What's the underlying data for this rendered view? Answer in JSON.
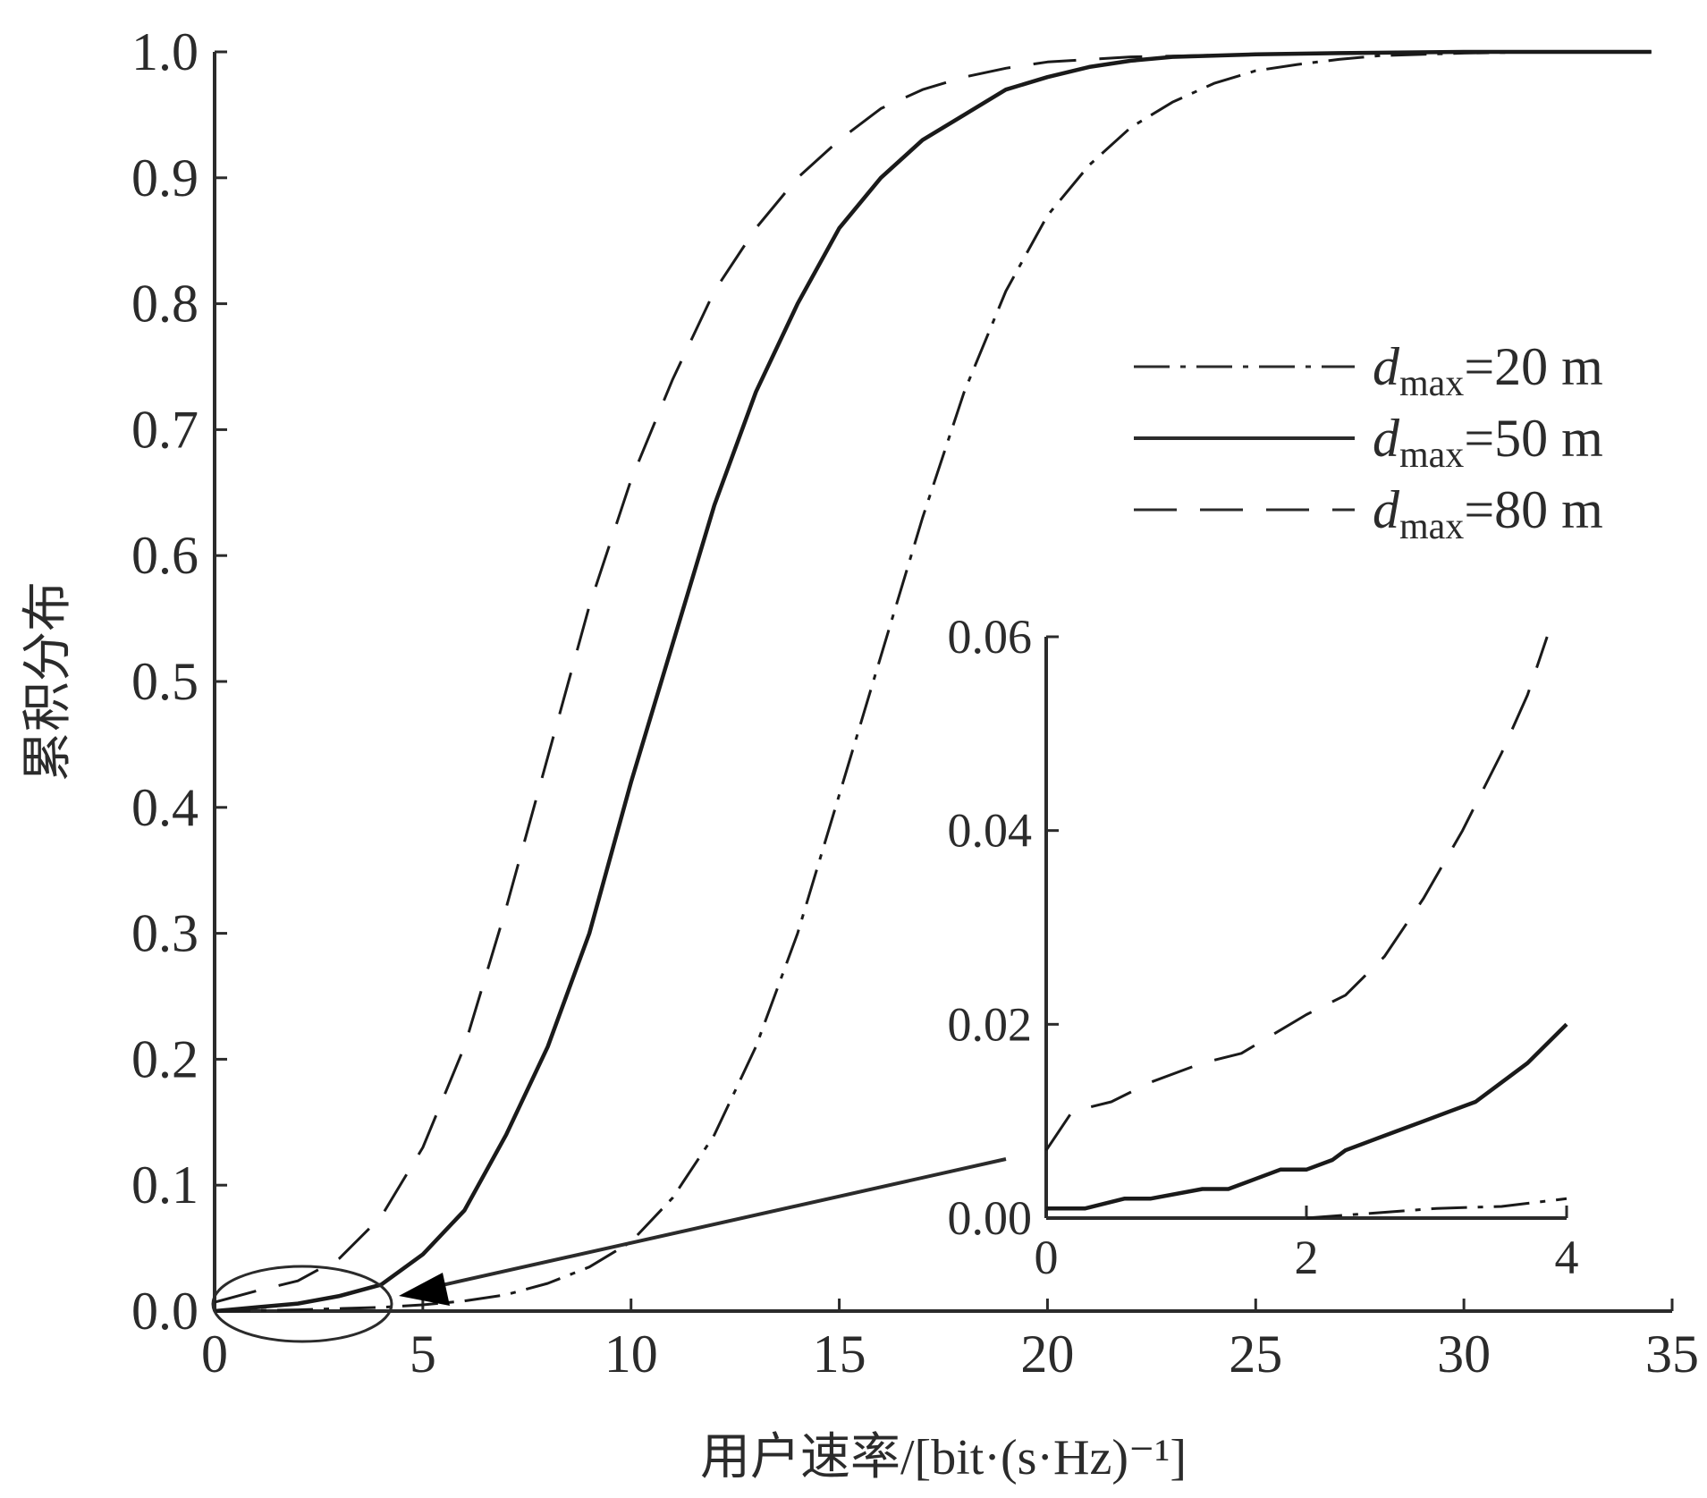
{
  "chart_data": [
    {
      "type": "line",
      "xlabel": "用户速率/[bit·(s·Hz)⁻¹]",
      "ylabel": "累积分布",
      "xlim": [
        0,
        35
      ],
      "ylim": [
        0,
        1.0
      ],
      "x_ticks": [
        "0",
        "5",
        "10",
        "15",
        "20",
        "25",
        "30",
        "35"
      ],
      "y_ticks": [
        "0.0",
        "0.1",
        "0.2",
        "0.3",
        "0.4",
        "0.5",
        "0.6",
        "0.7",
        "0.8",
        "0.9",
        "1.0"
      ],
      "grid": false,
      "legend_position": "upper-right",
      "legend": [
        {
          "prefix": "d",
          "sub": "max",
          "suffix": "=20 m",
          "style": "dashdot"
        },
        {
          "prefix": "d",
          "sub": "max",
          "suffix": "=50 m",
          "style": "solid"
        },
        {
          "prefix": "d",
          "sub": "max",
          "suffix": "=80 m",
          "style": "dashed"
        }
      ],
      "series": [
        {
          "style": "dashdot",
          "x": [
            0,
            2,
            4,
            5,
            6,
            7,
            8,
            9,
            10,
            11,
            12,
            13,
            14,
            15,
            16,
            17,
            18,
            19,
            20,
            21,
            22,
            23,
            24,
            25,
            26,
            27,
            28,
            30,
            32,
            34.5
          ],
          "y": [
            0,
            0.001,
            0.003,
            0.005,
            0.008,
            0.013,
            0.022,
            0.035,
            0.055,
            0.09,
            0.14,
            0.21,
            0.3,
            0.41,
            0.52,
            0.63,
            0.73,
            0.81,
            0.87,
            0.91,
            0.94,
            0.96,
            0.975,
            0.985,
            0.99,
            0.994,
            0.997,
            0.999,
            1.0,
            1.0
          ]
        },
        {
          "style": "solid",
          "x": [
            0,
            1,
            2,
            3,
            4,
            5,
            6,
            7,
            8,
            9,
            10,
            11,
            12,
            13,
            14,
            15,
            16,
            17,
            18,
            19,
            20,
            21,
            22,
            23,
            25,
            27,
            30,
            34.5
          ],
          "y": [
            0,
            0.003,
            0.006,
            0.012,
            0.021,
            0.045,
            0.08,
            0.14,
            0.21,
            0.3,
            0.42,
            0.53,
            0.64,
            0.73,
            0.8,
            0.86,
            0.9,
            0.93,
            0.95,
            0.97,
            0.98,
            0.988,
            0.993,
            0.996,
            0.998,
            0.999,
            1.0,
            1.0
          ]
        },
        {
          "style": "dashed",
          "x": [
            0,
            1,
            2,
            3,
            4,
            5,
            6,
            7,
            8,
            9,
            10,
            11,
            12,
            13,
            14,
            15,
            16,
            17,
            18,
            19,
            20,
            22,
            25,
            28,
            30,
            34.5
          ],
          "y": [
            0.007,
            0.016,
            0.024,
            0.042,
            0.075,
            0.13,
            0.21,
            0.32,
            0.44,
            0.56,
            0.66,
            0.74,
            0.81,
            0.86,
            0.9,
            0.93,
            0.955,
            0.97,
            0.98,
            0.987,
            0.992,
            0.996,
            0.998,
            0.999,
            1.0,
            1.0
          ]
        }
      ]
    },
    {
      "type": "line",
      "inset": true,
      "xlim": [
        0,
        4
      ],
      "ylim": [
        0,
        0.06
      ],
      "x_ticks": [
        "0",
        "2",
        "4"
      ],
      "y_ticks": [
        "0.00",
        "0.02",
        "0.04",
        "0.06"
      ],
      "series": [
        {
          "style": "dashdot",
          "x": [
            2.0,
            2.5,
            3.0,
            3.5,
            4.0
          ],
          "y": [
            0.0,
            0.0005,
            0.001,
            0.0012,
            0.002
          ]
        },
        {
          "style": "solid",
          "x": [
            0,
            0.3,
            0.6,
            0.8,
            1.2,
            1.4,
            1.6,
            1.8,
            2.0,
            2.2,
            2.3,
            2.5,
            2.7,
            2.9,
            3.1,
            3.3,
            3.5,
            3.7,
            4.0
          ],
          "y": [
            0.001,
            0.001,
            0.002,
            0.002,
            0.003,
            0.003,
            0.004,
            0.005,
            0.005,
            0.006,
            0.007,
            0.008,
            0.009,
            0.01,
            0.011,
            0.012,
            0.014,
            0.016,
            0.02
          ]
        },
        {
          "style": "dashed",
          "x": [
            0,
            0.2,
            0.5,
            0.8,
            1.2,
            1.5,
            2.0,
            2.3,
            2.6,
            2.9,
            3.2,
            3.5,
            3.7,
            3.85
          ],
          "y": [
            0.007,
            0.011,
            0.012,
            0.014,
            0.016,
            0.017,
            0.021,
            0.023,
            0.027,
            0.033,
            0.04,
            0.048,
            0.054,
            0.06
          ]
        }
      ]
    }
  ]
}
